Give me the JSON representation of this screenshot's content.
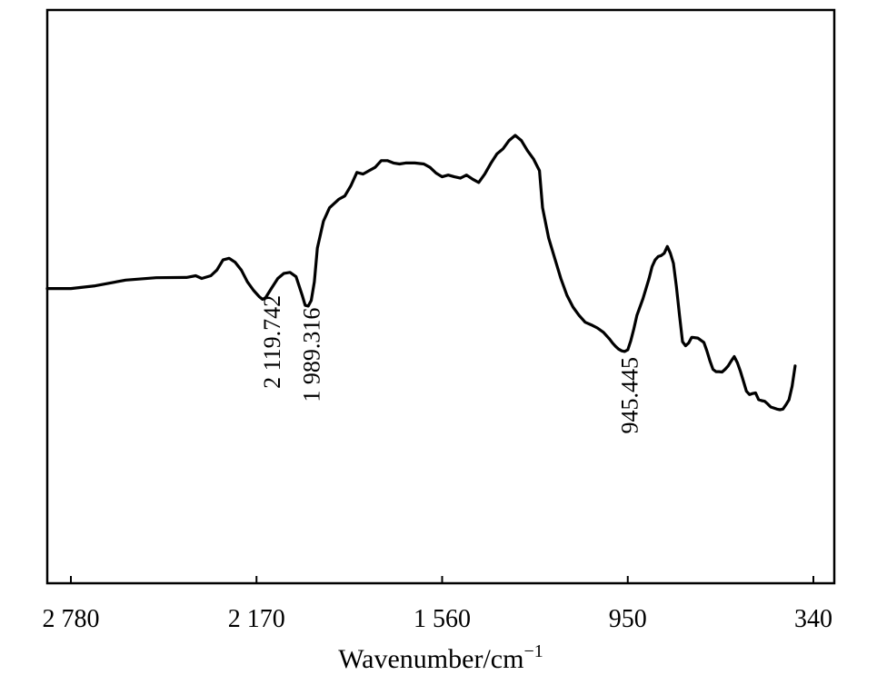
{
  "chart_data": {
    "type": "line",
    "title": "",
    "xlabel": "Wavenumber/cm",
    "xlabel_exponent": "−1",
    "ylabel": "",
    "x_reversed": true,
    "xlim": [
      2780,
      340
    ],
    "x_ticks": [
      {
        "value": 2780,
        "label": "2 780"
      },
      {
        "value": 2170,
        "label": "2 170"
      },
      {
        "value": 1560,
        "label": "1 560"
      },
      {
        "value": 950,
        "label": "950"
      },
      {
        "value": 340,
        "label": "340"
      }
    ],
    "y_ticks_shown": false,
    "grid": false,
    "annotations": [
      {
        "label": "2 119.742",
        "x": 2119.742
      },
      {
        "label": "1 989.316",
        "x": 1989.316
      },
      {
        "label": "945.445",
        "x": 945.445
      }
    ],
    "series": [
      {
        "color": "#000000",
        "note_relative_intensity": "transmittance in arbitrary units, higher = more transmittance",
        "points": [
          [
            2780,
            36.0
          ],
          [
            2700,
            36.8
          ],
          [
            2600,
            38.5
          ],
          [
            2500,
            39.2
          ],
          [
            2400,
            39.3
          ],
          [
            2370,
            39.8
          ],
          [
            2350,
            39.0
          ],
          [
            2320,
            39.8
          ],
          [
            2300,
            41.5
          ],
          [
            2280,
            44.5
          ],
          [
            2260,
            45.0
          ],
          [
            2240,
            43.8
          ],
          [
            2220,
            41.5
          ],
          [
            2200,
            38.0
          ],
          [
            2180,
            35.5
          ],
          [
            2160,
            33.5
          ],
          [
            2150,
            32.8
          ],
          [
            2140,
            33.3
          ],
          [
            2120,
            36.2
          ],
          [
            2100,
            39.0
          ],
          [
            2080,
            40.5
          ],
          [
            2060,
            40.8
          ],
          [
            2040,
            39.5
          ],
          [
            2020,
            34.0
          ],
          [
            2010,
            31.0
          ],
          [
            2000,
            30.8
          ],
          [
            1990,
            32.5
          ],
          [
            1980,
            38.0
          ],
          [
            1970,
            48.0
          ],
          [
            1950,
            56.0
          ],
          [
            1930,
            60.0
          ],
          [
            1900,
            62.5
          ],
          [
            1880,
            63.5
          ],
          [
            1860,
            66.5
          ],
          [
            1840,
            70.5
          ],
          [
            1820,
            70.0
          ],
          [
            1800,
            71.0
          ],
          [
            1780,
            72.0
          ],
          [
            1760,
            74.0
          ],
          [
            1740,
            74.0
          ],
          [
            1720,
            73.3
          ],
          [
            1700,
            73.0
          ],
          [
            1680,
            73.3
          ],
          [
            1650,
            73.3
          ],
          [
            1620,
            73.0
          ],
          [
            1600,
            72.0
          ],
          [
            1580,
            70.3
          ],
          [
            1560,
            69.2
          ],
          [
            1540,
            69.7
          ],
          [
            1520,
            69.2
          ],
          [
            1500,
            68.8
          ],
          [
            1480,
            69.7
          ],
          [
            1460,
            68.5
          ],
          [
            1440,
            67.5
          ],
          [
            1420,
            70.0
          ],
          [
            1400,
            73.2
          ],
          [
            1380,
            76.0
          ],
          [
            1360,
            77.5
          ],
          [
            1340,
            80.0
          ],
          [
            1320,
            81.5
          ],
          [
            1300,
            80.0
          ],
          [
            1280,
            77.0
          ],
          [
            1260,
            74.5
          ],
          [
            1240,
            71.0
          ],
          [
            1230,
            60.0
          ],
          [
            1210,
            51.0
          ],
          [
            1190,
            45.0
          ],
          [
            1170,
            39.0
          ],
          [
            1150,
            34.0
          ],
          [
            1130,
            30.5
          ],
          [
            1110,
            28.0
          ],
          [
            1090,
            26.0
          ],
          [
            1070,
            25.2
          ],
          [
            1050,
            24.3
          ],
          [
            1030,
            23.0
          ],
          [
            1010,
            21.0
          ],
          [
            1000,
            19.8
          ],
          [
            990,
            18.8
          ],
          [
            980,
            18.0
          ],
          [
            970,
            17.5
          ],
          [
            960,
            17.3
          ],
          [
            950,
            17.8
          ],
          [
            940,
            20.5
          ],
          [
            930,
            24.0
          ],
          [
            920,
            28.0
          ],
          [
            900,
            33.0
          ],
          [
            880,
            39.0
          ],
          [
            870,
            42.5
          ],
          [
            860,
            44.5
          ],
          [
            850,
            45.5
          ],
          [
            840,
            45.8
          ],
          [
            830,
            46.5
          ],
          [
            820,
            48.5
          ],
          [
            810,
            46.5
          ],
          [
            800,
            43.5
          ],
          [
            790,
            36.5
          ],
          [
            780,
            28.0
          ],
          [
            770,
            20.2
          ],
          [
            760,
            19.0
          ],
          [
            750,
            19.8
          ],
          [
            740,
            21.5
          ],
          [
            720,
            21.3
          ],
          [
            700,
            20.0
          ],
          [
            690,
            17.5
          ],
          [
            680,
            14.5
          ],
          [
            670,
            12.0
          ],
          [
            660,
            11.3
          ],
          [
            650,
            11.3
          ],
          [
            640,
            11.2
          ],
          [
            630,
            12.0
          ],
          [
            620,
            13.0
          ],
          [
            610,
            14.5
          ],
          [
            600,
            15.8
          ],
          [
            590,
            14.0
          ],
          [
            580,
            11.5
          ],
          [
            570,
            8.5
          ],
          [
            560,
            5.5
          ],
          [
            550,
            4.5
          ],
          [
            540,
            4.8
          ],
          [
            530,
            5.0
          ],
          [
            520,
            3.0
          ],
          [
            510,
            2.7
          ],
          [
            500,
            2.5
          ],
          [
            490,
            1.7
          ],
          [
            480,
            0.8
          ],
          [
            470,
            0.5
          ],
          [
            460,
            0.2
          ],
          [
            450,
            0.0
          ],
          [
            440,
            0.2
          ],
          [
            430,
            1.5
          ],
          [
            420,
            3.0
          ],
          [
            410,
            7.0
          ],
          [
            400,
            13.0
          ]
        ]
      }
    ]
  }
}
